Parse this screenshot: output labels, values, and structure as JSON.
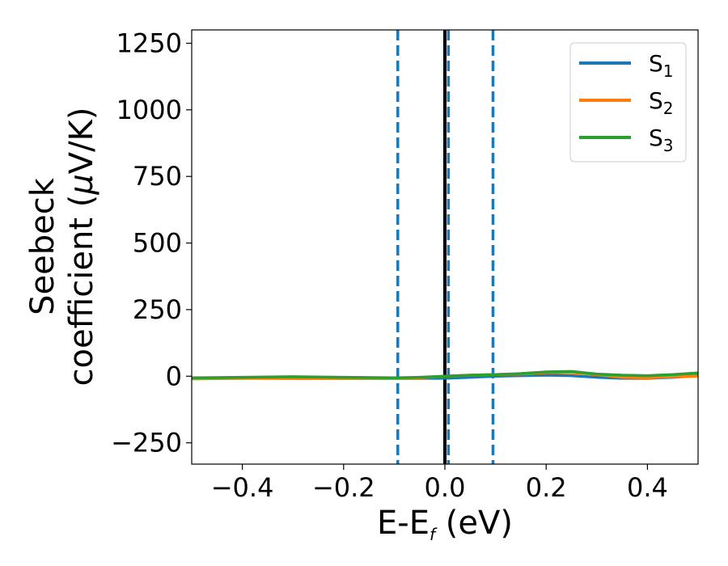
{
  "chart_data": {
    "type": "line",
    "xlabel": {
      "main": "E-E",
      "sub": "f",
      "unit": " (eV)"
    },
    "ylabel": {
      "line1": "Seebeck",
      "line2_prefix": "coefficient  (",
      "mu": "μ",
      "line2_suffix": "V/K)"
    },
    "xlim": [
      -0.5,
      0.5
    ],
    "ylim": [
      -330,
      1300
    ],
    "xticks": [
      -0.4,
      -0.2,
      0.0,
      0.2,
      0.4
    ],
    "xtick_labels": [
      "−0.4",
      "−0.2",
      "0.0",
      "0.2",
      "0.4"
    ],
    "yticks": [
      -250,
      0,
      250,
      500,
      750,
      1000,
      1250
    ],
    "ytick_labels": [
      "−250",
      "0",
      "250",
      "500",
      "750",
      "1000",
      "1250"
    ],
    "grid": false,
    "legend_position": "top-right",
    "vlines": [
      {
        "x": 0.0,
        "style": "solid",
        "color": "#000000"
      },
      {
        "x": -0.093,
        "style": "dashed",
        "color": "#1f77b4"
      },
      {
        "x": 0.007,
        "style": "dashed",
        "color": "#1f77b4"
      },
      {
        "x": 0.095,
        "style": "dashed",
        "color": "#1f77b4"
      }
    ],
    "series": [
      {
        "name": "S",
        "sub": "1",
        "color": "#1f77b4",
        "x": [
          -0.5,
          -0.4,
          -0.3,
          -0.2,
          -0.1,
          -0.05,
          0.0,
          0.05,
          0.1,
          0.15,
          0.2,
          0.25,
          0.3,
          0.35,
          0.4,
          0.45,
          0.5
        ],
        "y": [
          -8,
          -8,
          -8,
          -8,
          -8,
          -8,
          -8,
          -4,
          0,
          2,
          4,
          2,
          -4,
          -8,
          -8,
          -4,
          2
        ]
      },
      {
        "name": "S",
        "sub": "2",
        "color": "#ff7f0e",
        "x": [
          -0.5,
          -0.4,
          -0.3,
          -0.2,
          -0.1,
          -0.05,
          0.0,
          0.05,
          0.1,
          0.15,
          0.2,
          0.25,
          0.3,
          0.35,
          0.4,
          0.45,
          0.5
        ],
        "y": [
          -10,
          -8,
          -6,
          -6,
          -6,
          -6,
          0,
          4,
          6,
          8,
          14,
          14,
          6,
          -4,
          -6,
          -2,
          0
        ]
      },
      {
        "name": "S",
        "sub": "3",
        "color": "#2ca02c",
        "x": [
          -0.5,
          -0.4,
          -0.3,
          -0.2,
          -0.1,
          -0.05,
          0.0,
          0.05,
          0.1,
          0.15,
          0.2,
          0.25,
          0.3,
          0.35,
          0.4,
          0.45,
          0.5
        ],
        "y": [
          -6,
          -4,
          -2,
          -4,
          -6,
          -4,
          0,
          4,
          6,
          10,
          16,
          18,
          8,
          4,
          2,
          6,
          12
        ]
      }
    ]
  }
}
